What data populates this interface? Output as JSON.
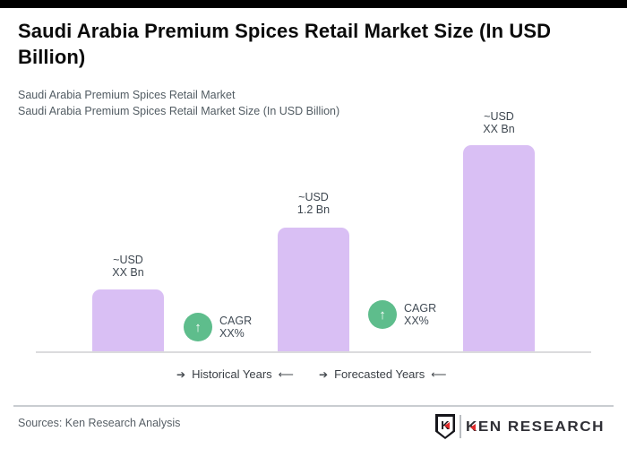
{
  "header": {
    "title": "Saudi Arabia Premium Spices Retail Market Size (In USD Billion)",
    "subtitle_line1": "Saudi Arabia Premium Spices Retail Market",
    "subtitle_line2": "Saudi Arabia Premium Spices Retail Market Size (In USD Billion)"
  },
  "chart_data": {
    "type": "bar",
    "title": "Saudi Arabia Premium Spices Retail Market Size (In USD Billion)",
    "values": [
      0.6,
      1.2,
      2.0
    ],
    "known_values": [
      null,
      1.2,
      null
    ],
    "bar_labels": [
      {
        "line1": "~USD",
        "line2": "XX Bn"
      },
      {
        "line1": "~USD",
        "line2": "1.2 Bn"
      },
      {
        "line1": "~USD",
        "line2": "XX Bn"
      }
    ],
    "cagr_badges": [
      {
        "line1": "CAGR",
        "line2": "XX%"
      },
      {
        "line1": "CAGR",
        "line2": "XX%"
      }
    ],
    "x_axis_sections": [
      {
        "arrow_left": "➔",
        "label": "Historical Years",
        "arrow_right": "⟵"
      },
      {
        "arrow_left": "➔",
        "label": "Forecasted Years",
        "arrow_right": "⟵"
      }
    ],
    "ylim": [
      0,
      2.5
    ],
    "grid": false,
    "legend": false,
    "colors": {
      "bar": "#d9bff4",
      "cagr_badge": "#5ebd8c",
      "axis_line": "#dbdbdd"
    }
  },
  "icons": {
    "up_arrow": "↑"
  },
  "footer": {
    "sources_text": "Sources: Ken Research Analysis",
    "logo": {
      "badge_letter": "K",
      "brand": "KEN RESEARCH",
      "accent_color": "#e02a2a"
    }
  }
}
